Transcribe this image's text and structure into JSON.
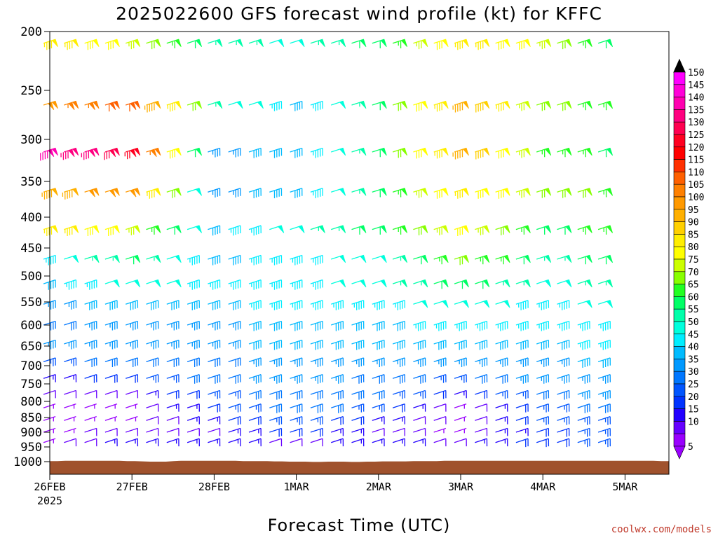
{
  "chart_data": {
    "type": "wind-barb time-height",
    "title": "2025022600 GFS forecast wind profile (kt) for KFFC",
    "xlabel": "Forecast Time (UTC)",
    "ylabel": "",
    "credit": "coolwx.com/models",
    "y_axis": {
      "ticks": [
        "200",
        "250",
        "300",
        "350",
        "400",
        "450",
        "500",
        "550",
        "600",
        "650",
        "700",
        "750",
        "800",
        "850",
        "900",
        "950",
        "1000"
      ],
      "ylim_hpa": [
        200,
        1000
      ]
    },
    "x_axis": {
      "ticks": [
        "26FEB",
        "27FEB",
        "28FEB",
        "1MAR",
        "2MAR",
        "3MAR",
        "4MAR",
        "5MAR"
      ],
      "year_label": "2025",
      "xlim_hours": [
        0,
        162
      ],
      "interval_hours": 6
    },
    "colorbar": {
      "labels": [
        "150",
        "145",
        "140",
        "135",
        "130",
        "125",
        "120",
        "115",
        "110",
        "105",
        "100",
        "95",
        "90",
        "85",
        "80",
        "75",
        "70",
        "65",
        "60",
        "55",
        "50",
        "45",
        "40",
        "35",
        "30",
        "25",
        "20",
        "15",
        "10",
        "5"
      ],
      "colors": [
        "#ff00ff",
        "#ff00d8",
        "#ff00b0",
        "#ff0080",
        "#ff0050",
        "#ff0020",
        "#ff0000",
        "#ff3000",
        "#ff6000",
        "#ff8000",
        "#ff9900",
        "#ffb000",
        "#ffd000",
        "#ffee00",
        "#ffff00",
        "#ccff00",
        "#88ff00",
        "#22ff22",
        "#00ff66",
        "#00ffaa",
        "#00ffdd",
        "#00eeff",
        "#00bbff",
        "#0099ff",
        "#0077ff",
        "#0055ff",
        "#0033ff",
        "#2200ff",
        "#6600ff",
        "#9900ff"
      ]
    },
    "levels_hpa": [
      200,
      250,
      300,
      350,
      400,
      450,
      500,
      550,
      600,
      650,
      700,
      750,
      800,
      850,
      900,
      950,
      1000
    ],
    "profile_levels_hpa": [
      210,
      265,
      315,
      365,
      420,
      470,
      515,
      555,
      600,
      645,
      690,
      735,
      780,
      820,
      860,
      900,
      935
    ],
    "profile_speeds_kt": [
      [
        85,
        100,
        140,
        95,
        85,
        45,
        40,
        35,
        30,
        35,
        25,
        15,
        10,
        5,
        5,
        5,
        5
      ],
      [
        75,
        110,
        125,
        100,
        75,
        60,
        50,
        40,
        35,
        35,
        30,
        20,
        10,
        5,
        5,
        10,
        15
      ],
      [
        55,
        55,
        35,
        35,
        40,
        40,
        45,
        40,
        35,
        35,
        30,
        30,
        25,
        20,
        15,
        10,
        15
      ],
      [
        50,
        40,
        40,
        40,
        50,
        45,
        45,
        45,
        40,
        40,
        35,
        35,
        30,
        30,
        25,
        20,
        10
      ],
      [
        60,
        60,
        60,
        60,
        60,
        50,
        50,
        45,
        40,
        40,
        35,
        30,
        30,
        25,
        15,
        10,
        15
      ],
      [
        85,
        95,
        95,
        85,
        80,
        70,
        60,
        50,
        45,
        40,
        35,
        25,
        15,
        5,
        5,
        5,
        10
      ],
      [
        75,
        70,
        65,
        70,
        60,
        55,
        50,
        45,
        45,
        40,
        35,
        35,
        30,
        25,
        25,
        20,
        20
      ],
      [
        55,
        60,
        60,
        65,
        65,
        60,
        55,
        50,
        45,
        45,
        40,
        35,
        35,
        30,
        25,
        25,
        25
      ]
    ],
    "surface_pressure_hpa": [
      998,
      998,
      997,
      997,
      997,
      997,
      997,
      997,
      997,
      997,
      998,
      998,
      999,
      1000,
      1000,
      1000,
      998,
      997,
      997,
      997,
      997,
      997,
      997,
      997,
      997,
      998,
      998,
      998,
      998,
      999,
      999,
      1000,
      1000,
      1000,
      1001,
      1001,
      1000,
      1000,
      1000,
      1001,
      1001,
      1000,
      1000,
      999,
      999,
      999,
      999,
      998,
      998,
      998,
      998,
      997,
      997,
      997,
      997,
      997,
      997,
      997,
      997,
      997,
      997,
      997,
      997,
      997,
      997,
      997,
      997,
      997,
      997,
      997,
      997,
      997,
      997,
      997,
      997,
      997,
      997,
      997,
      997,
      998,
      998
    ],
    "ground_color": "#a0522d",
    "grid": false,
    "legend_position": "right"
  }
}
